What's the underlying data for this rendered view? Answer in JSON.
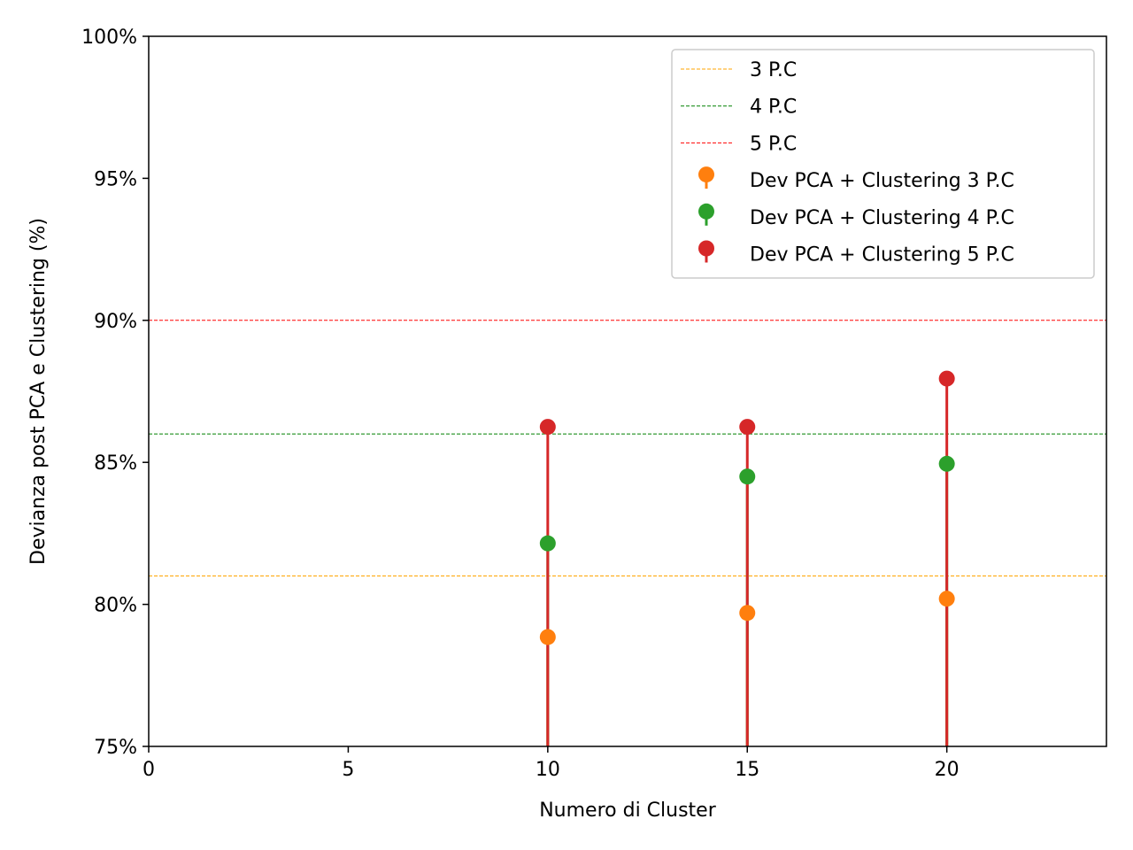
{
  "chart_data": {
    "type": "scatter",
    "xlabel": "Numero di Cluster",
    "ylabel": "Devianza post PCA e Clustering (%)",
    "xlim": [
      0,
      24
    ],
    "ylim": [
      75,
      100
    ],
    "x_ticks": [
      0,
      5,
      10,
      15,
      20
    ],
    "y_ticks": [
      75,
      80,
      85,
      90,
      95,
      100
    ],
    "y_tick_format": "percent",
    "grid": false,
    "legend_position": "top-right",
    "reference_lines": [
      {
        "name": "3 P.C",
        "y": 81,
        "color": "#ffa500",
        "style": "dashed"
      },
      {
        "name": "4 P.C",
        "y": 86,
        "color": "#008000",
        "style": "dashed"
      },
      {
        "name": "5 P.C",
        "y": 90,
        "color": "#ff0000",
        "style": "dashed"
      }
    ],
    "x": [
      10,
      15,
      20
    ],
    "series": [
      {
        "name": "Dev PCA + Clustering 3 P.C",
        "color": "#ff7f0e",
        "values": [
          78.85,
          79.7,
          80.2
        ]
      },
      {
        "name": "Dev PCA + Clustering 4 P.C",
        "color": "#2ca02c",
        "values": [
          82.15,
          84.5,
          84.95
        ]
      },
      {
        "name": "Dev PCA + Clustering 5 P.C",
        "color": "#d62728",
        "values": [
          86.25,
          86.25,
          87.95
        ]
      }
    ]
  }
}
